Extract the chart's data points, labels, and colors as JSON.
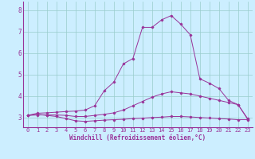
{
  "xlabel": "Windchill (Refroidissement éolien,°C)",
  "background_color": "#cceeff",
  "grid_color": "#99cccc",
  "line_color": "#993399",
  "x_ticks": [
    0,
    1,
    2,
    3,
    4,
    5,
    6,
    7,
    8,
    9,
    10,
    11,
    12,
    13,
    14,
    15,
    16,
    17,
    18,
    19,
    20,
    21,
    22,
    23
  ],
  "y_ticks": [
    3,
    4,
    5,
    6,
    7,
    8
  ],
  "xlim": [
    -0.5,
    23.5
  ],
  "ylim": [
    2.55,
    8.4
  ],
  "series": {
    "line1": {
      "x": [
        0,
        1,
        2,
        3,
        4,
        5,
        6,
        7,
        8,
        9,
        10,
        11,
        12,
        13,
        14,
        15,
        16,
        17,
        18,
        19,
        20,
        21,
        22,
        23
      ],
      "y": [
        3.1,
        3.15,
        3.1,
        3.05,
        2.95,
        2.85,
        2.82,
        2.85,
        2.88,
        2.9,
        2.92,
        2.95,
        2.97,
        3.0,
        3.02,
        3.05,
        3.05,
        3.03,
        3.0,
        2.98,
        2.95,
        2.93,
        2.9,
        2.9
      ],
      "marker": "D",
      "markersize": 1.5
    },
    "line2": {
      "x": [
        0,
        1,
        2,
        3,
        4,
        5,
        6,
        7,
        8,
        9,
        10,
        11,
        12,
        13,
        14,
        15,
        16,
        17,
        18,
        19,
        20,
        21,
        22,
        23
      ],
      "y": [
        3.1,
        3.12,
        3.12,
        3.12,
        3.1,
        3.05,
        3.05,
        3.1,
        3.15,
        3.22,
        3.35,
        3.55,
        3.75,
        3.95,
        4.1,
        4.2,
        4.15,
        4.1,
        4.0,
        3.9,
        3.8,
        3.7,
        3.6,
        2.95
      ],
      "marker": "D",
      "markersize": 1.5
    },
    "line3": {
      "x": [
        0,
        1,
        2,
        3,
        4,
        5,
        6,
        7,
        8,
        9,
        10,
        11,
        12,
        13,
        14,
        15,
        16,
        17,
        18,
        19,
        20,
        21,
        22,
        23
      ],
      "y": [
        3.1,
        3.2,
        3.22,
        3.25,
        3.28,
        3.3,
        3.35,
        3.55,
        4.25,
        4.65,
        5.5,
        5.75,
        7.2,
        7.2,
        7.55,
        7.75,
        7.35,
        6.85,
        4.8,
        4.6,
        4.35,
        3.8,
        3.6,
        2.92
      ],
      "marker": "D",
      "markersize": 1.5
    }
  },
  "tick_fontsize": 5,
  "xlabel_fontsize": 5.5,
  "tick_color": "#993399",
  "spine_color": "#993399"
}
